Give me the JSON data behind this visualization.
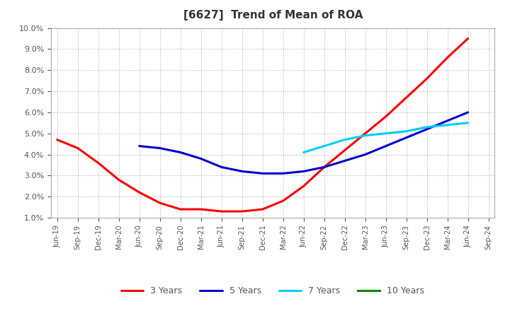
{
  "title": "[6627]  Trend of Mean of ROA",
  "ylim": [
    0.01,
    0.1
  ],
  "yticks": [
    0.01,
    0.02,
    0.03,
    0.04,
    0.05,
    0.06,
    0.07,
    0.08,
    0.09,
    0.1
  ],
  "x_labels": [
    "Jun-19",
    "Sep-19",
    "Dec-19",
    "Mar-20",
    "Jun-20",
    "Sep-20",
    "Dec-20",
    "Mar-21",
    "Jun-21",
    "Sep-21",
    "Dec-21",
    "Mar-22",
    "Jun-22",
    "Sep-22",
    "Dec-22",
    "Mar-23",
    "Jun-23",
    "Sep-23",
    "Dec-23",
    "Mar-24",
    "Jun-24",
    "Sep-24"
  ],
  "series_3y": [
    0.047,
    0.043,
    0.036,
    0.028,
    0.022,
    0.017,
    0.014,
    0.014,
    0.013,
    0.013,
    0.014,
    0.018,
    0.025,
    0.034,
    0.042,
    0.05,
    0.058,
    0.067,
    0.076,
    0.086,
    0.095,
    null
  ],
  "series_5y": [
    null,
    null,
    null,
    null,
    0.044,
    0.043,
    0.041,
    0.038,
    0.034,
    0.032,
    0.031,
    0.031,
    0.032,
    0.034,
    0.037,
    0.04,
    0.044,
    0.048,
    0.052,
    0.056,
    0.06,
    null
  ],
  "series_7y": [
    null,
    null,
    null,
    null,
    null,
    null,
    null,
    null,
    null,
    null,
    null,
    null,
    0.041,
    0.044,
    0.047,
    0.049,
    0.05,
    0.051,
    0.053,
    0.054,
    0.055,
    null
  ],
  "series_10y": [
    null,
    null,
    null,
    null,
    null,
    null,
    null,
    null,
    null,
    null,
    null,
    null,
    null,
    null,
    null,
    null,
    null,
    null,
    null,
    null,
    null,
    null
  ],
  "color_3y": "#ff0000",
  "color_5y": "#0000cc",
  "color_7y": "#00ccff",
  "color_10y": "#008800",
  "background_color": "#ffffff",
  "grid_color": "#aaaaaa",
  "title_color": "#333333",
  "tick_color": "#555555",
  "legend_labels": [
    "3 Years",
    "5 Years",
    "7 Years",
    "10 Years"
  ],
  "figsize": [
    7.2,
    4.4
  ],
  "dpi": 100
}
